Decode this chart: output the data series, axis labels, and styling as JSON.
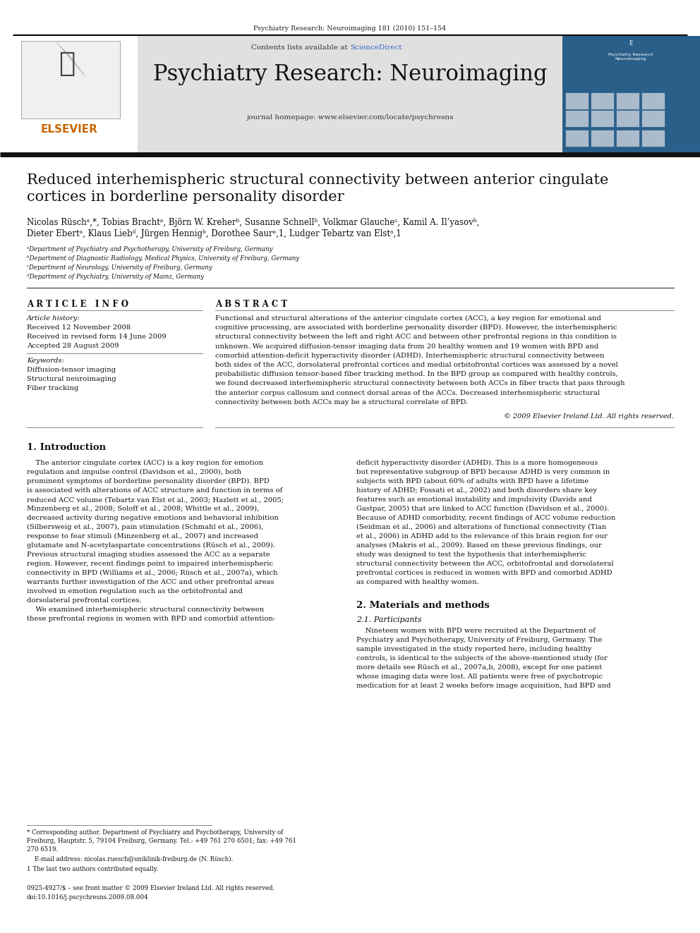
{
  "page_width": 9.92,
  "page_height": 13.23,
  "dpi": 100,
  "bg_color": "#ffffff",
  "journal_ref": "Psychiatry Research: Neuroimaging 181 (2010) 151–154",
  "journal_title": "Psychiatry Research: Neuroimaging",
  "journal_homepage": "journal homepage: www.elsevier.com/locate/psychresns",
  "sciencedirect_color": "#3366cc",
  "header_bg": "#e0e0e0",
  "article_title_line1": "Reduced interhemispheric structural connectivity between anterior cingulate",
  "article_title_line2": "cortices in borderline personality disorder",
  "authors_line1": "Nicolas Rüschᵃ,*, Tobias Brachtᵃ, Björn W. Kreherᵇ, Susanne Schnellᵇ, Volkmar Glaucheᶜ, Kamil A. Il’yasovᵇ,",
  "authors_line2": "Dieter Ebertᵃ, Klaus Liebᵈ, Jürgen Hennigᵇ, Dorothee Saurᵃ,1, Ludger Tebartz van Elstᵃ,1",
  "affil_a": "ᵃDepartment of Psychiatry and Psychotherapy, University of Freiburg, Germany",
  "affil_b": "ᵇDepartment of Diagnostic Radiology, Medical Physics, University of Freiburg, Germany",
  "affil_c": "ᶜDepartment of Neurology, University of Freiburg, Germany",
  "affil_d": "ᵈDepartment of Psychiatry, University of Mainz, Germany",
  "article_info_header": "A R T I C L E   I N F O",
  "abstract_header": "A B S T R A C T",
  "article_history_label": "Article history:",
  "received1": "Received 12 November 2008",
  "received2": "Received in revised form 14 June 2009",
  "accepted": "Accepted 28 August 2009",
  "keywords_label": "Keywords:",
  "kw1": "Diffusion-tensor imaging",
  "kw2": "Structural neuroimaging",
  "kw3": "Fiber tracking",
  "abstract_text": "Functional and structural alterations of the anterior cingulate cortex (ACC), a key region for emotional and\ncognitive processing, are associated with borderline personality disorder (BPD). However, the interhemispheric\nstructural connectivity between the left and right ACC and between other prefrontal regions in this condition is\nunknown. We acquired diffusion-tensor imaging data from 20 healthy women and 19 women with BPD and\ncomorbid attention-deficit hyperactivity disorder (ADHD). Interhemispheric structural connectivity between\nboth sides of the ACC, dorsolateral prefrontal cortices and medial orbitofrontal cortices was assessed by a novel\nprobabilistic diffusion tensor-based fiber tracking method. In the BPD group as compared with healthy controls,\nwe found decreased interhemispheric structural connectivity between both ACCs in fiber tracts that pass through\nthe anterior corpus callosum and connect dorsal areas of the ACCs. Decreased interhemispheric structural\nconnectivity between both ACCs may be a structural correlate of BPD.",
  "copyright": "© 2009 Elsevier Ireland Ltd. All rights reserved.",
  "intro_header": "1. Introduction",
  "intro_col1_lines": [
    "    The anterior cingulate cortex (ACC) is a key region for emotion",
    "regulation and impulse control (Davidson et al., 2000), both",
    "prominent symptoms of borderline personality disorder (BPD). BPD",
    "is associated with alterations of ACC structure and function in terms of",
    "reduced ACC volume (Tebartz van Elst et al., 2003; Hazlett et al., 2005;",
    "Minzenberg et al., 2008; Soloff et al., 2008; Whittle et al., 2009),",
    "decreased activity during negative emotions and behavioral inhibition",
    "(Silbersweig et al., 2007), pain stimulation (Schmahl et al., 2006),",
    "response to fear stimuli (Minzenberg et al., 2007) and increased",
    "glutamate and N-acetylaspartate concentrations (Rüsch et al., 2009).",
    "Previous structural imaging studies assessed the ACC as a separate",
    "region. However, recent findings point to impaired interhemispheric",
    "connectivity in BPD (Williams et al., 2006; Rüsch et al., 2007a), which",
    "warrants further investigation of the ACC and other prefrontal areas",
    "involved in emotion regulation such as the orbitofrontal and",
    "dorsolateral prefrontal cortices.",
    "    We examined interhemispheric structural connectivity between",
    "these prefrontal regions in women with BPD and comorbid attention-"
  ],
  "intro_col2_lines": [
    "deficit hyperactivity disorder (ADHD). This is a more homogeneous",
    "but representative subgroup of BPD because ADHD is very common in",
    "subjects with BPD (about 60% of adults with BPD have a lifetime",
    "history of ADHD; Fossati et al., 2002) and both disorders share key",
    "features such as emotional instability and impulsivity (Davids and",
    "Gastpar, 2005) that are linked to ACC function (Davidson et al., 2000).",
    "Because of ADHD comorbidity, recent findings of ACC volume reduction",
    "(Seidman et al., 2006) and alterations of functional connectivity (Tian",
    "et al., 2006) in ADHD add to the relevance of this brain region for our",
    "analyses (Makris et al., 2009). Based on these previous findings, our",
    "study was designed to test the hypothesis that interhemispheric",
    "structural connectivity between the ACC, orbitofrontal and dorsolateral",
    "prefrontal cortices is reduced in women with BPD and comorbid ADHD",
    "as compared with healthy women."
  ],
  "section2_header": "2. Materials and methods",
  "section21_header": "2.1. Participants",
  "participants_lines": [
    "    Nineteen women with BPD were recruited at the Department of",
    "Psychiatry and Psychotherapy, University of Freiburg, Germany. The",
    "sample investigated in the study reported here, including healthy",
    "controls, is identical to the subjects of the above-mentioned study (for",
    "more details see Rüsch et al., 2007a,b, 2008), except for one patient",
    "whose imaging data were lost. All patients were free of psychotropic",
    "medication for at least 2 weeks before image acquisition, had BPD and"
  ],
  "footnote_star_line1": "* Corresponding author. Department of Psychiatry and Psychotherapy, University of",
  "footnote_star_line2": "Freiburg, Hauptstr. 5, 79104 Freiburg, Germany. Tel.: +49 761 270 6501; fax: +49 761",
  "footnote_star_line3": "270 6519.",
  "footnote_email": "    E-mail address: nicolas.ruesch@uniklinik-freiburg.de (N. Rüsch).",
  "footnote_1": "1 The last two authors contributed equally.",
  "footer_line1": "0925-4927/$ – see front matter © 2009 Elsevier Ireland Ltd. All rights reserved.",
  "footer_line2": "doi:10.1016/j.pscychresns.2009.08.004",
  "link_color": "#3333bb",
  "elsevier_orange": "#cc6600",
  "rule_color": "#333333",
  "thin_rule_color": "#888888",
  "heavy_rule_color": "#111111"
}
